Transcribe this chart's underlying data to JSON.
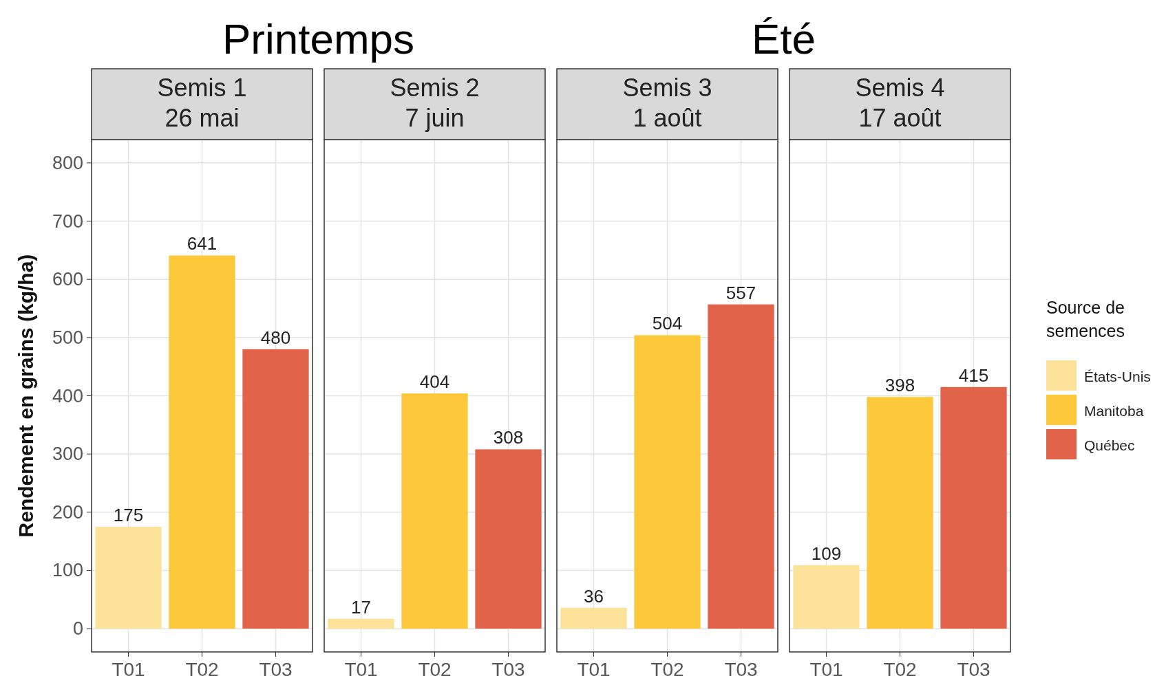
{
  "chart_data": [
    {
      "type": "bar",
      "title": "Semis 1\n26 mai",
      "ylabel": "Rendement en grains (kg/ha)",
      "annotations": [
        "Printemps"
      ],
      "categories": [
        "T01",
        "T02",
        "T03"
      ],
      "ylim": [
        -40,
        840
      ],
      "yticks": [
        0,
        100,
        200,
        300,
        400,
        500,
        600,
        700,
        800
      ],
      "grid": true,
      "data_labels": true,
      "series": [
        {
          "color": "#fde39a",
          "values": [
            175,
            null,
            null
          ]
        },
        {
          "color": "#fdc93a",
          "values": [
            null,
            641,
            null
          ]
        },
        {
          "color": "#e0634a",
          "values": [
            null,
            null,
            480
          ]
        }
      ]
    },
    {
      "type": "bar",
      "title": "Semis 2\n7 juin",
      "categories": [
        "T01",
        "T02",
        "T03"
      ],
      "ylim": [
        -40,
        840
      ],
      "yticks": [
        0,
        100,
        200,
        300,
        400,
        500,
        600,
        700,
        800
      ],
      "tick_labels": "x",
      "grid": true,
      "data_labels": true,
      "series": [
        {
          "color": "#fde39a",
          "values": [
            17,
            null,
            null
          ]
        },
        {
          "color": "#fdc93a",
          "values": [
            null,
            404,
            null
          ]
        },
        {
          "color": "#e0634a",
          "values": [
            null,
            null,
            308
          ]
        }
      ]
    },
    {
      "type": "bar",
      "title": "Semis 3\n1 août",
      "annotations": [
        "Été"
      ],
      "categories": [
        "T01",
        "T02",
        "T03"
      ],
      "ylim": [
        -40,
        840
      ],
      "yticks": [
        0,
        100,
        200,
        300,
        400,
        500,
        600,
        700,
        800
      ],
      "tick_labels": "x",
      "grid": true,
      "data_labels": true,
      "series": [
        {
          "color": "#fde39a",
          "values": [
            36,
            null,
            null
          ]
        },
        {
          "color": "#fdc93a",
          "values": [
            null,
            504,
            null
          ]
        },
        {
          "color": "#e0634a",
          "values": [
            null,
            null,
            557
          ]
        }
      ]
    },
    {
      "type": "bar",
      "title": "Semis 4\n17 août",
      "legend_title": "Source de\nsemences",
      "legend": "right",
      "categories": [
        "T01",
        "T02",
        "T03"
      ],
      "ylim": [
        -40,
        840
      ],
      "yticks": [
        0,
        100,
        200,
        300,
        400,
        500,
        600,
        700,
        800
      ],
      "tick_labels": "x",
      "grid": true,
      "data_labels": true,
      "series": [
        {
          "name": "États-Unis",
          "color": "#fde39a",
          "values": [
            109,
            null,
            null
          ]
        },
        {
          "name": "Manitoba",
          "color": "#fdc93a",
          "values": [
            null,
            398,
            null
          ]
        },
        {
          "name": "Québec",
          "color": "#e0634a",
          "values": [
            null,
            null,
            415
          ]
        }
      ]
    }
  ]
}
